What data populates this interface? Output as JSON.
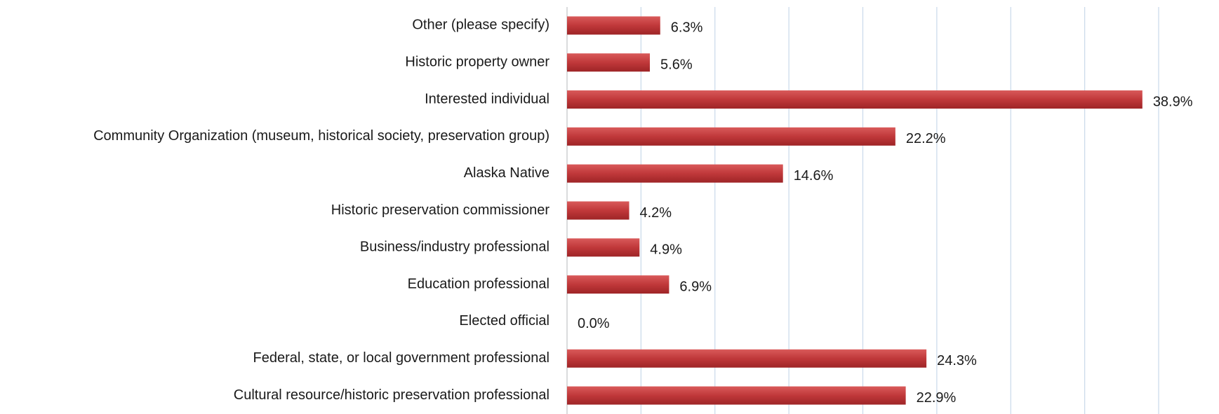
{
  "chart_data": {
    "type": "bar",
    "orientation": "horizontal",
    "categories": [
      "Other (please specify)",
      "Historic property owner",
      "Interested individual",
      "Community Organization (museum, historical society, preservation group)",
      "Alaska Native",
      "Historic preservation commissioner",
      "Business/industry professional",
      "Education professional",
      "Elected official",
      "Federal, state, or local government professional",
      "Cultural resource/historic preservation professional"
    ],
    "values": [
      6.3,
      5.6,
      38.9,
      22.2,
      14.6,
      4.2,
      4.9,
      6.9,
      0.0,
      24.3,
      22.9
    ],
    "value_labels": [
      "6.3%",
      "5.6%",
      "38.9%",
      "22.2%",
      "14.6%",
      "4.2%",
      "4.9%",
      "6.9%",
      "0.0%",
      "24.3%",
      "22.9%"
    ],
    "color": "#c0383a",
    "xlim": [
      0,
      40
    ],
    "xticks": [
      0,
      5,
      10,
      15,
      20,
      25,
      30,
      35,
      40
    ],
    "grid": true
  }
}
